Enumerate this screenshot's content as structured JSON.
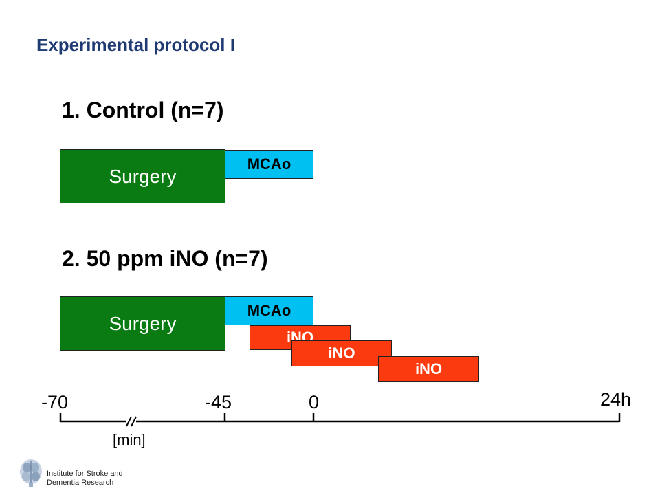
{
  "title": "Experimental protocol I",
  "sections": [
    {
      "heading": "1. Control (n=7)",
      "bars": [
        {
          "label": "Surgery",
          "kind": "surgery"
        },
        {
          "label": "MCAo",
          "kind": "mcao"
        }
      ]
    },
    {
      "heading": "2. 50 ppm iNO (n=7)",
      "bars": [
        {
          "label": "Surgery",
          "kind": "surgery"
        },
        {
          "label": "MCAo",
          "kind": "mcao"
        },
        {
          "label": "iNO",
          "kind": "ino"
        },
        {
          "label": "iNO",
          "kind": "ino"
        },
        {
          "label": "iNO",
          "kind": "ino"
        }
      ]
    }
  ],
  "axis": {
    "ticks": [
      "-70",
      "-45",
      "0",
      "24h"
    ],
    "unit": "[min]",
    "break_marker": "//"
  },
  "logo": {
    "icon": "brain-icon",
    "line1": "Institute for Stroke and",
    "line2": "Dementia Research"
  },
  "colors": {
    "title": "#1f3a73",
    "surgery": "#0a7a12",
    "mcao": "#00c0f2",
    "ino": "#fb3a10"
  }
}
